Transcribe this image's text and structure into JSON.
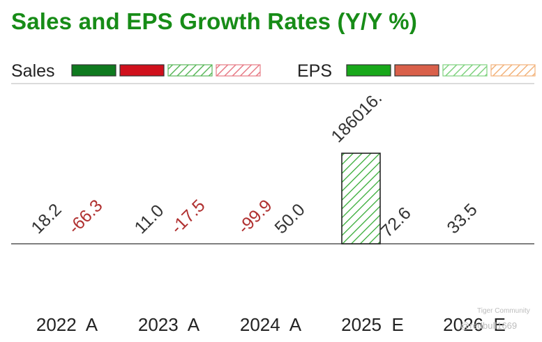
{
  "chart_data": {
    "type": "bar",
    "title": "Sales and EPS Growth Rates (Y/Y %)",
    "legend": {
      "sales_label": "Sales",
      "eps_label": "EPS",
      "sales_swatches": [
        {
          "name": "sales-actual-positive",
          "color": "#0f7a1f",
          "hatched": false
        },
        {
          "name": "sales-actual-negative",
          "color": "#d0101c",
          "hatched": false
        },
        {
          "name": "sales-estimate-positive",
          "color": "#5cb85c",
          "hatched": true
        },
        {
          "name": "sales-estimate-negative",
          "color": "#e77b86",
          "hatched": true
        }
      ],
      "eps_swatches": [
        {
          "name": "eps-actual-positive",
          "color": "#18a81a",
          "hatched": false
        },
        {
          "name": "eps-actual-negative",
          "color": "#d9604a",
          "hatched": false
        },
        {
          "name": "eps-estimate-positive",
          "color": "#7fd27f",
          "hatched": true
        },
        {
          "name": "eps-estimate-negative",
          "color": "#f2b27a",
          "hatched": true
        }
      ]
    },
    "categories": [
      "2022  A",
      "2023  A",
      "2024  A",
      "2025  E",
      "2026  E"
    ],
    "series": [
      {
        "name": "Sales",
        "values": [
          18.2,
          11.0,
          -99.9,
          186016,
          33.5
        ],
        "labels": [
          "18.2",
          "11.0",
          "-99.9",
          "186016.",
          "33.5"
        ]
      },
      {
        "name": "EPS",
        "values": [
          -66.3,
          -17.5,
          50.0,
          72.6,
          null
        ],
        "labels": [
          "-66.3",
          "-17.5",
          "50.0",
          "72.6",
          ""
        ]
      }
    ],
    "label_colors": {
      "positive": "#333333",
      "negative": "#b03030"
    },
    "hatch_color": "#2ea82e",
    "ylim": [
      -99.9,
      186016
    ],
    "xlabel": "",
    "ylabel": ""
  },
  "watermark": {
    "brand": "Tiger Community",
    "handle": "@redbull1669"
  }
}
